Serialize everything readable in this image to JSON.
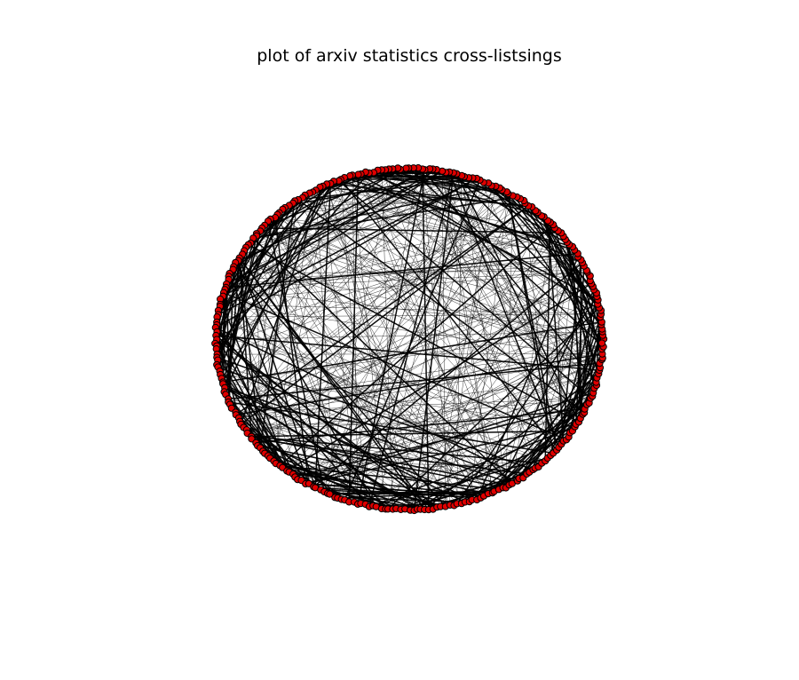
{
  "title": "plot of arxiv statistics cross-listsings",
  "diagram": {
    "type": "network-circular-layout",
    "node_count": 300,
    "thick_edge_count": 260,
    "thin_edge_count": 240,
    "node_color": "#e00000",
    "node_edge_color": "#000000",
    "edge_color": "#000000",
    "background": "#ffffff"
  }
}
